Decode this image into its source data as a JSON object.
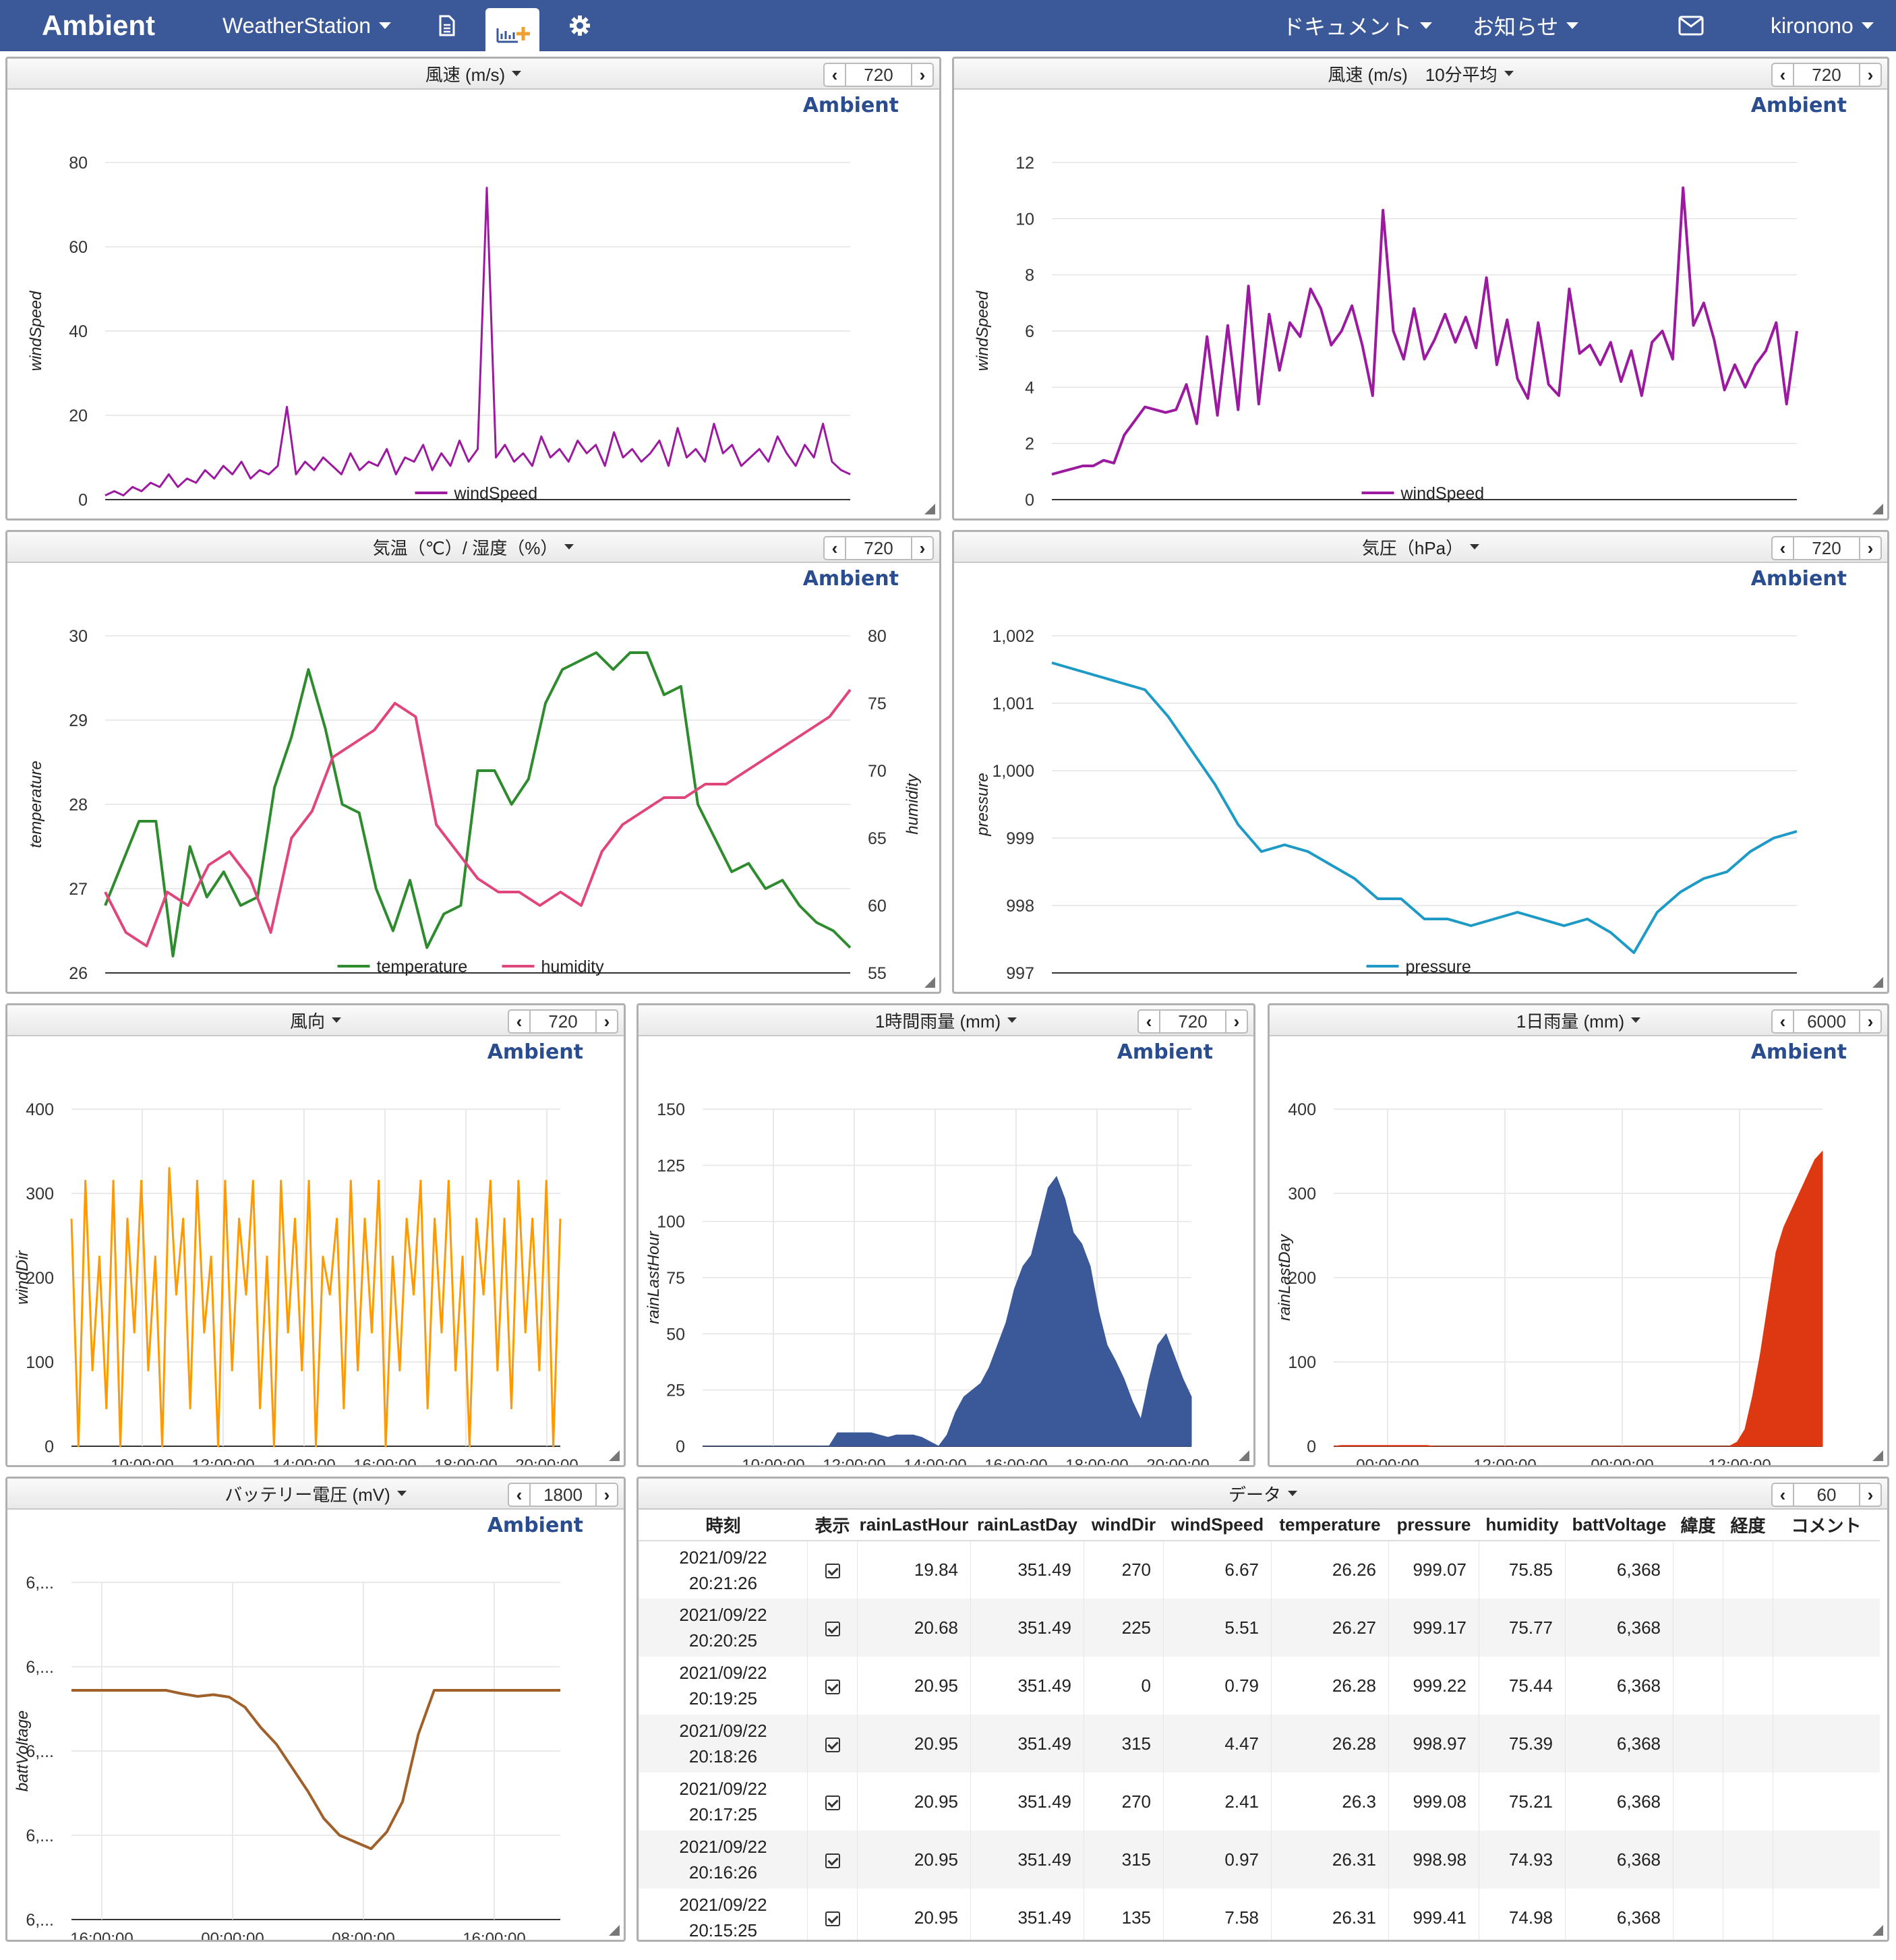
{
  "navbar": {
    "brand": "Ambient",
    "channel": "WeatherStation",
    "docs": "ドキュメント",
    "news": "お知らせ",
    "user": "kironono",
    "icons": [
      "document-icon",
      "chart-add-icon",
      "gear-icon",
      "mail-icon"
    ]
  },
  "logo_text": "Ambient",
  "panels": {
    "wind": {
      "title": "風速 (m/s)",
      "count": "720"
    },
    "wind10": {
      "title": "風速 (m/s)　10分平均",
      "count": "720"
    },
    "temp": {
      "title": "気温（℃）/ 湿度（%）",
      "count": "720"
    },
    "pressure": {
      "title": "気圧（hPa）",
      "count": "720"
    },
    "winddir": {
      "title": "風向",
      "count": "720"
    },
    "rainhour": {
      "title": "1時間雨量 (mm)",
      "count": "720"
    },
    "rainday": {
      "title": "1日雨量 (mm)",
      "count": "6000"
    },
    "batt": {
      "title": "バッテリー電圧 (mV)",
      "count": "1800"
    },
    "data": {
      "title": "データ",
      "count": "60"
    }
  },
  "colors": {
    "navbar": "#3b5998",
    "windSpeed": "#9b1aa0",
    "temperature": "#2e8b2e",
    "humidity": "#e0457b",
    "pressure": "#1e9ac6",
    "windDir": "#ff9900",
    "rainLastHour": "#3b5998",
    "rainLastDay": "#dc3912",
    "battVoltage": "#a0602a"
  },
  "chart_data": [
    {
      "id": "wind",
      "type": "line",
      "series": [
        {
          "name": "windSpeed",
          "values": [
            1,
            2,
            1,
            3,
            2,
            4,
            3,
            6,
            3,
            5,
            4,
            7,
            5,
            8,
            6,
            9,
            5,
            7,
            6,
            8,
            22,
            6,
            9,
            7,
            10,
            8,
            6,
            11,
            7,
            9,
            8,
            12,
            6,
            10,
            9,
            13,
            7,
            11,
            8,
            14,
            9,
            12,
            74,
            10,
            13,
            9,
            11,
            8,
            15,
            10,
            12,
            9,
            14,
            11,
            13,
            8,
            16,
            10,
            12,
            9,
            11,
            14,
            8,
            17,
            10,
            12,
            9,
            18,
            11,
            13,
            8,
            10,
            12,
            9,
            15,
            11,
            8,
            13,
            10,
            18,
            9,
            7,
            6
          ]
        }
      ],
      "ylabel": "windSpeed",
      "yticks": [
        "0",
        "20",
        "40",
        "60",
        "80"
      ],
      "ylim": [
        0,
        80
      ],
      "legend": "bottom"
    },
    {
      "id": "wind10",
      "type": "line",
      "series": [
        {
          "name": "windSpeed",
          "values": [
            0.9,
            1.0,
            1.1,
            1.2,
            1.2,
            1.4,
            1.3,
            2.3,
            2.8,
            3.3,
            3.2,
            3.1,
            3.2,
            4.1,
            2.7,
            5.8,
            3.0,
            6.2,
            3.2,
            7.6,
            3.4,
            6.6,
            4.6,
            6.3,
            5.8,
            7.5,
            6.8,
            5.5,
            6.0,
            6.9,
            5.5,
            3.7,
            10.3,
            6.0,
            5.0,
            6.8,
            5.0,
            5.7,
            6.6,
            5.6,
            6.5,
            5.4,
            7.9,
            4.8,
            6.4,
            4.3,
            3.6,
            6.3,
            4.1,
            3.7,
            7.5,
            5.2,
            5.5,
            4.8,
            5.6,
            4.2,
            5.3,
            3.7,
            5.6,
            6.0,
            5.0,
            11.1,
            6.2,
            7.0,
            5.7,
            3.9,
            4.8,
            4.0,
            4.8,
            5.3,
            6.3,
            3.4,
            6.0
          ]
        }
      ],
      "ylabel": "windSpeed",
      "yticks": [
        "0",
        "2",
        "4",
        "6",
        "8",
        "10",
        "12"
      ],
      "ylim": [
        0,
        12
      ],
      "legend": "bottom"
    },
    {
      "id": "temp",
      "type": "line",
      "series": [
        {
          "name": "temperature",
          "axis": "left",
          "values": [
            26.8,
            27.3,
            27.8,
            27.8,
            26.2,
            27.5,
            26.9,
            27.2,
            26.8,
            26.9,
            28.2,
            28.8,
            29.6,
            28.9,
            28.0,
            27.9,
            27.0,
            26.5,
            27.1,
            26.3,
            26.7,
            26.8,
            28.4,
            28.4,
            28.0,
            28.3,
            29.2,
            29.6,
            29.7,
            29.8,
            29.6,
            29.8,
            29.8,
            29.3,
            29.4,
            28.0,
            27.6,
            27.2,
            27.3,
            27.0,
            27.1,
            26.8,
            26.6,
            26.5,
            26.3
          ]
        },
        {
          "name": "humidity",
          "axis": "right",
          "values": [
            61.0,
            58.0,
            57.0,
            61.0,
            60.0,
            63.0,
            64.0,
            62.0,
            58.0,
            65.0,
            67.0,
            71.0,
            72.0,
            73.0,
            75.0,
            74.0,
            66.0,
            64.0,
            62.0,
            61.0,
            61.0,
            60.0,
            61.0,
            60.0,
            64.0,
            66.0,
            67.0,
            68.0,
            68.0,
            69.0,
            69.0,
            70.0,
            71.0,
            72.0,
            73.0,
            74.0,
            76.0
          ]
        }
      ],
      "ylabel": "temperature",
      "y2label": "humidity",
      "yticks": [
        "26",
        "27",
        "28",
        "29",
        "30"
      ],
      "y2ticks": [
        "55",
        "60",
        "65",
        "70",
        "75",
        "80"
      ],
      "ylim": [
        26,
        30
      ],
      "y2lim": [
        55,
        80
      ],
      "legend": "bottom"
    },
    {
      "id": "pressure",
      "type": "line",
      "series": [
        {
          "name": "pressure",
          "values": [
            1001.6,
            1001.5,
            1001.4,
            1001.3,
            1001.2,
            1000.8,
            1000.3,
            999.8,
            999.2,
            998.8,
            998.9,
            998.8,
            998.6,
            998.4,
            998.1,
            998.1,
            997.8,
            997.8,
            997.7,
            997.8,
            997.9,
            997.8,
            997.7,
            997.8,
            997.6,
            997.3,
            997.9,
            998.2,
            998.4,
            998.5,
            998.8,
            999.0,
            999.1
          ]
        }
      ],
      "ylabel": "pressure",
      "yticks": [
        "997",
        "998",
        "999",
        "1,000",
        "1,001",
        "1,002"
      ],
      "ylim": [
        997,
        1002
      ],
      "legend": "bottom"
    },
    {
      "id": "winddir",
      "type": "line",
      "series": [
        {
          "name": "windDir",
          "values": [
            270,
            0,
            315,
            90,
            225,
            45,
            315,
            0,
            270,
            135,
            315,
            90,
            225,
            0,
            330,
            180,
            270,
            45,
            315,
            135,
            225,
            0,
            315,
            90,
            270,
            180,
            315,
            45,
            225,
            0,
            315,
            135,
            270,
            90,
            315,
            0,
            225,
            180,
            270,
            45,
            315,
            90,
            270,
            135,
            315,
            0,
            225,
            90,
            270,
            180,
            315,
            45,
            270,
            135,
            315,
            90,
            225,
            0,
            270,
            180,
            315,
            90,
            270,
            45,
            315,
            135,
            270,
            90,
            315,
            0,
            270
          ]
        }
      ],
      "ylabel": "windDir",
      "xticks": [
        "10:00:00",
        "12:00:00",
        "14:00:00",
        "16:00:00",
        "18:00:00",
        "20:00:00"
      ],
      "yticks": [
        "0",
        "100",
        "200",
        "300",
        "400"
      ],
      "ylim": [
        0,
        400
      ],
      "legend": "bottom"
    },
    {
      "id": "rainhour",
      "type": "area",
      "series": [
        {
          "name": "rainLastHour",
          "values": [
            0,
            0,
            0,
            0,
            0,
            0,
            0,
            0,
            0,
            0,
            0,
            0,
            0,
            0,
            0,
            0,
            6,
            6,
            6,
            6,
            6,
            5,
            4,
            5,
            5,
            5,
            4,
            2,
            0,
            5,
            15,
            22,
            25,
            28,
            35,
            45,
            55,
            70,
            80,
            85,
            100,
            115,
            120,
            110,
            95,
            90,
            80,
            60,
            45,
            38,
            30,
            20,
            12,
            30,
            45,
            50,
            40,
            30,
            22
          ]
        }
      ],
      "ylabel": "rainLastHour",
      "xticks": [
        "10:00:00",
        "12:00:00",
        "14:00:00",
        "16:00:00",
        "18:00:00",
        "20:00:00"
      ],
      "yticks": [
        "0",
        "25",
        "50",
        "75",
        "100",
        "125",
        "150"
      ],
      "ylim": [
        0,
        150
      ],
      "legend": "bottom"
    },
    {
      "id": "rainday",
      "type": "area",
      "series": [
        {
          "name": "rainLastDay",
          "values": [
            0,
            1,
            1,
            1,
            1,
            1,
            1,
            1,
            1,
            1,
            1,
            1,
            1,
            0,
            0,
            0,
            0,
            0,
            0,
            0,
            0,
            0,
            0,
            0,
            0,
            0,
            0,
            0,
            0,
            0,
            0,
            0,
            0,
            0,
            0,
            0,
            0,
            0,
            0,
            0,
            0,
            0,
            0,
            0,
            0,
            0,
            0,
            0,
            0,
            0,
            0,
            0,
            5,
            20,
            60,
            110,
            170,
            230,
            260,
            280,
            300,
            320,
            340,
            350
          ]
        }
      ],
      "ylabel": "rainLastDay",
      "xticks": [
        "00:00:00",
        "12:00:00",
        "00:00:00",
        "12:00:00"
      ],
      "yticks": [
        "0",
        "100",
        "200",
        "300",
        "400"
      ],
      "ylim": [
        0,
        400
      ],
      "legend": "bottom"
    },
    {
      "id": "batt",
      "type": "line",
      "series": [
        {
          "name": "battVoltage",
          "fractions": [
            0.68,
            0.68,
            0.68,
            0.68,
            0.68,
            0.68,
            0.68,
            0.67,
            0.662,
            0.667,
            0.66,
            0.63,
            0.57,
            0.52,
            0.45,
            0.38,
            0.3,
            0.25,
            0.23,
            0.21,
            0.26,
            0.35,
            0.55,
            0.68,
            0.68,
            0.68,
            0.68,
            0.68,
            0.68,
            0.68,
            0.68,
            0.68
          ]
        }
      ],
      "ylabel": "battVoltage",
      "xticks": [
        "16:00:00",
        "00:00:00",
        "08:00:00",
        "16:00:00"
      ],
      "yticks": [
        "6,...",
        "6,...",
        "6,...",
        "6,...",
        "6,..."
      ],
      "legend": "bottom"
    }
  ],
  "table": {
    "columns": [
      "時刻",
      "表示",
      "rainLastHour",
      "rainLastDay",
      "windDir",
      "windSpeed",
      "temperature",
      "pressure",
      "humidity",
      "battVoltage",
      "緯度",
      "経度",
      "コメント"
    ],
    "rows": [
      [
        "2021/09/22\n20:21:26",
        "✓",
        "19.84",
        "351.49",
        "270",
        "6.67",
        "26.26",
        "999.07",
        "75.85",
        "6,368",
        "",
        "",
        ""
      ],
      [
        "2021/09/22\n20:20:25",
        "✓",
        "20.68",
        "351.49",
        "225",
        "5.51",
        "26.27",
        "999.17",
        "75.77",
        "6,368",
        "",
        "",
        ""
      ],
      [
        "2021/09/22\n20:19:25",
        "✓",
        "20.95",
        "351.49",
        "0",
        "0.79",
        "26.28",
        "999.22",
        "75.44",
        "6,368",
        "",
        "",
        ""
      ],
      [
        "2021/09/22\n20:18:26",
        "✓",
        "20.95",
        "351.49",
        "315",
        "4.47",
        "26.28",
        "998.97",
        "75.39",
        "6,368",
        "",
        "",
        ""
      ],
      [
        "2021/09/22\n20:17:25",
        "✓",
        "20.95",
        "351.49",
        "270",
        "2.41",
        "26.3",
        "999.08",
        "75.21",
        "6,368",
        "",
        "",
        ""
      ],
      [
        "2021/09/22\n20:16:26",
        "✓",
        "20.95",
        "351.49",
        "315",
        "0.97",
        "26.31",
        "998.98",
        "74.93",
        "6,368",
        "",
        "",
        ""
      ],
      [
        "2021/09/22\n20:15:25",
        "✓",
        "20.95",
        "351.49",
        "135",
        "7.58",
        "26.31",
        "999.41",
        "74.98",
        "6,368",
        "",
        "",
        ""
      ]
    ]
  }
}
